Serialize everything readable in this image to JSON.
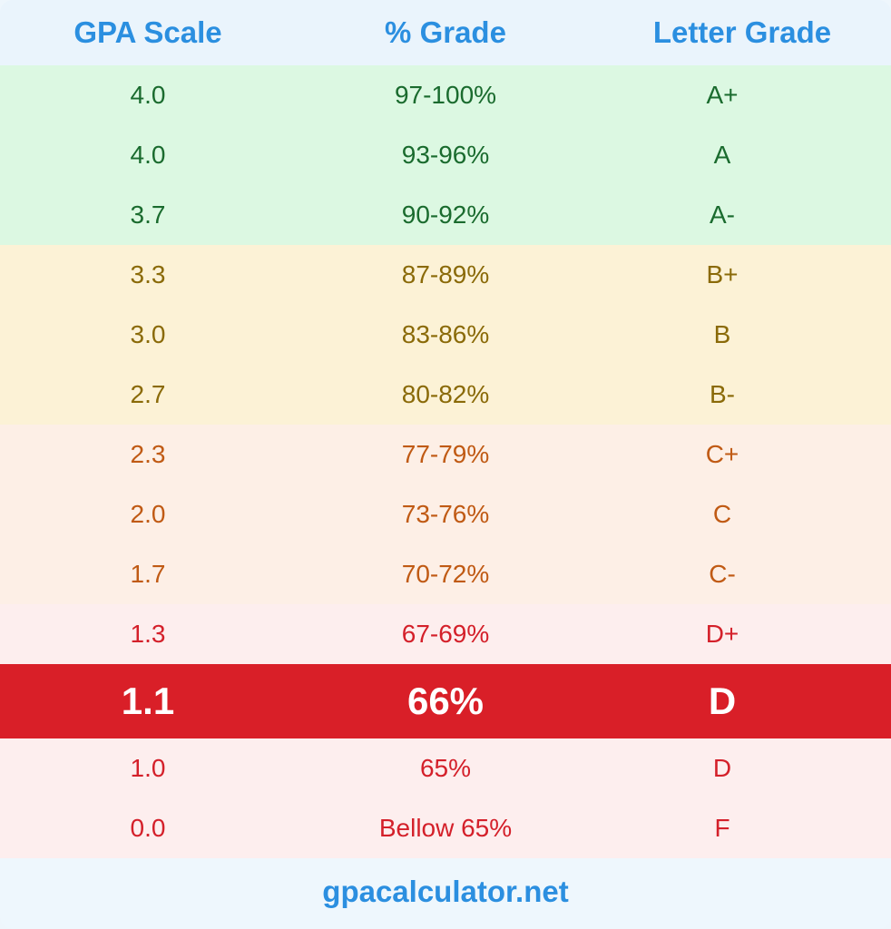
{
  "header": {
    "gpa": "GPA Scale",
    "percent": "% Grade",
    "letter": "Letter Grade",
    "color": "#2b8fe0"
  },
  "rows": [
    {
      "gpa": "4.0",
      "percent": "97-100%",
      "letter": "A+",
      "bg": "#dcf8e2",
      "fg": "#1a6b2e"
    },
    {
      "gpa": "4.0",
      "percent": "93-96%",
      "letter": "A",
      "bg": "#dcf8e2",
      "fg": "#1a6b2e"
    },
    {
      "gpa": "3.7",
      "percent": "90-92%",
      "letter": "A-",
      "bg": "#dcf8e2",
      "fg": "#1a6b2e"
    },
    {
      "gpa": "3.3",
      "percent": "87-89%",
      "letter": "B+",
      "bg": "#fcf2d6",
      "fg": "#8a6a08"
    },
    {
      "gpa": "3.0",
      "percent": "83-86%",
      "letter": "B",
      "bg": "#fcf2d6",
      "fg": "#8a6a08"
    },
    {
      "gpa": "2.7",
      "percent": "80-82%",
      "letter": "B-",
      "bg": "#fcf2d6",
      "fg": "#8a6a08"
    },
    {
      "gpa": "2.3",
      "percent": "77-79%",
      "letter": "C+",
      "bg": "#fdefe6",
      "fg": "#c05a14"
    },
    {
      "gpa": "2.0",
      "percent": "73-76%",
      "letter": "C",
      "bg": "#fdefe6",
      "fg": "#c05a14"
    },
    {
      "gpa": "1.7",
      "percent": "70-72%",
      "letter": "C-",
      "bg": "#fdefe6",
      "fg": "#c05a14"
    },
    {
      "gpa": "1.3",
      "percent": "67-69%",
      "letter": "D+",
      "bg": "#fdeeee",
      "fg": "#d4202a"
    },
    {
      "gpa": "1.1",
      "percent": "66%",
      "letter": "D",
      "bg": "#d91f28",
      "fg": "#ffffff",
      "highlight": true
    },
    {
      "gpa": "1.0",
      "percent": "65%",
      "letter": "D",
      "bg": "#fdeeee",
      "fg": "#d4202a"
    },
    {
      "gpa": "0.0",
      "percent": "Bellow 65%",
      "letter": "F",
      "bg": "#fdeeee",
      "fg": "#d4202a"
    }
  ],
  "footer": {
    "site": "gpacalculator.net"
  }
}
